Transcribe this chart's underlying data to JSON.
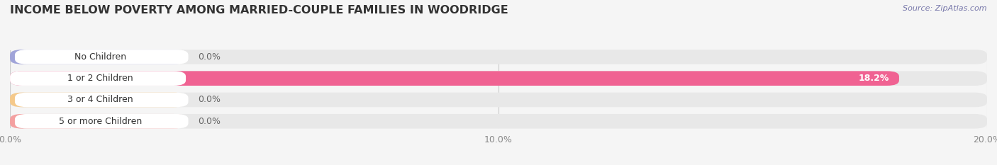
{
  "title": "INCOME BELOW POVERTY AMONG MARRIED-COUPLE FAMILIES IN WOODRIDGE",
  "source_text": "Source: ZipAtlas.com",
  "categories": [
    "No Children",
    "1 or 2 Children",
    "3 or 4 Children",
    "5 or more Children"
  ],
  "values": [
    0.0,
    18.2,
    0.0,
    0.0
  ],
  "bar_colors": [
    "#a0a4d9",
    "#f06292",
    "#f5c98a",
    "#f4a0a0"
  ],
  "bar_bg_color": "#e8e8e8",
  "label_bg_color": "#ffffff",
  "xlim": [
    0,
    20.0
  ],
  "xticks": [
    0.0,
    10.0,
    20.0
  ],
  "xtick_labels": [
    "0.0%",
    "10.0%",
    "20.0%"
  ],
  "background_color": "#f5f5f5",
  "title_fontsize": 11.5,
  "label_fontsize": 9,
  "value_fontsize": 9,
  "bar_height": 0.68,
  "figsize": [
    14.06,
    2.33
  ],
  "dpi": 100
}
